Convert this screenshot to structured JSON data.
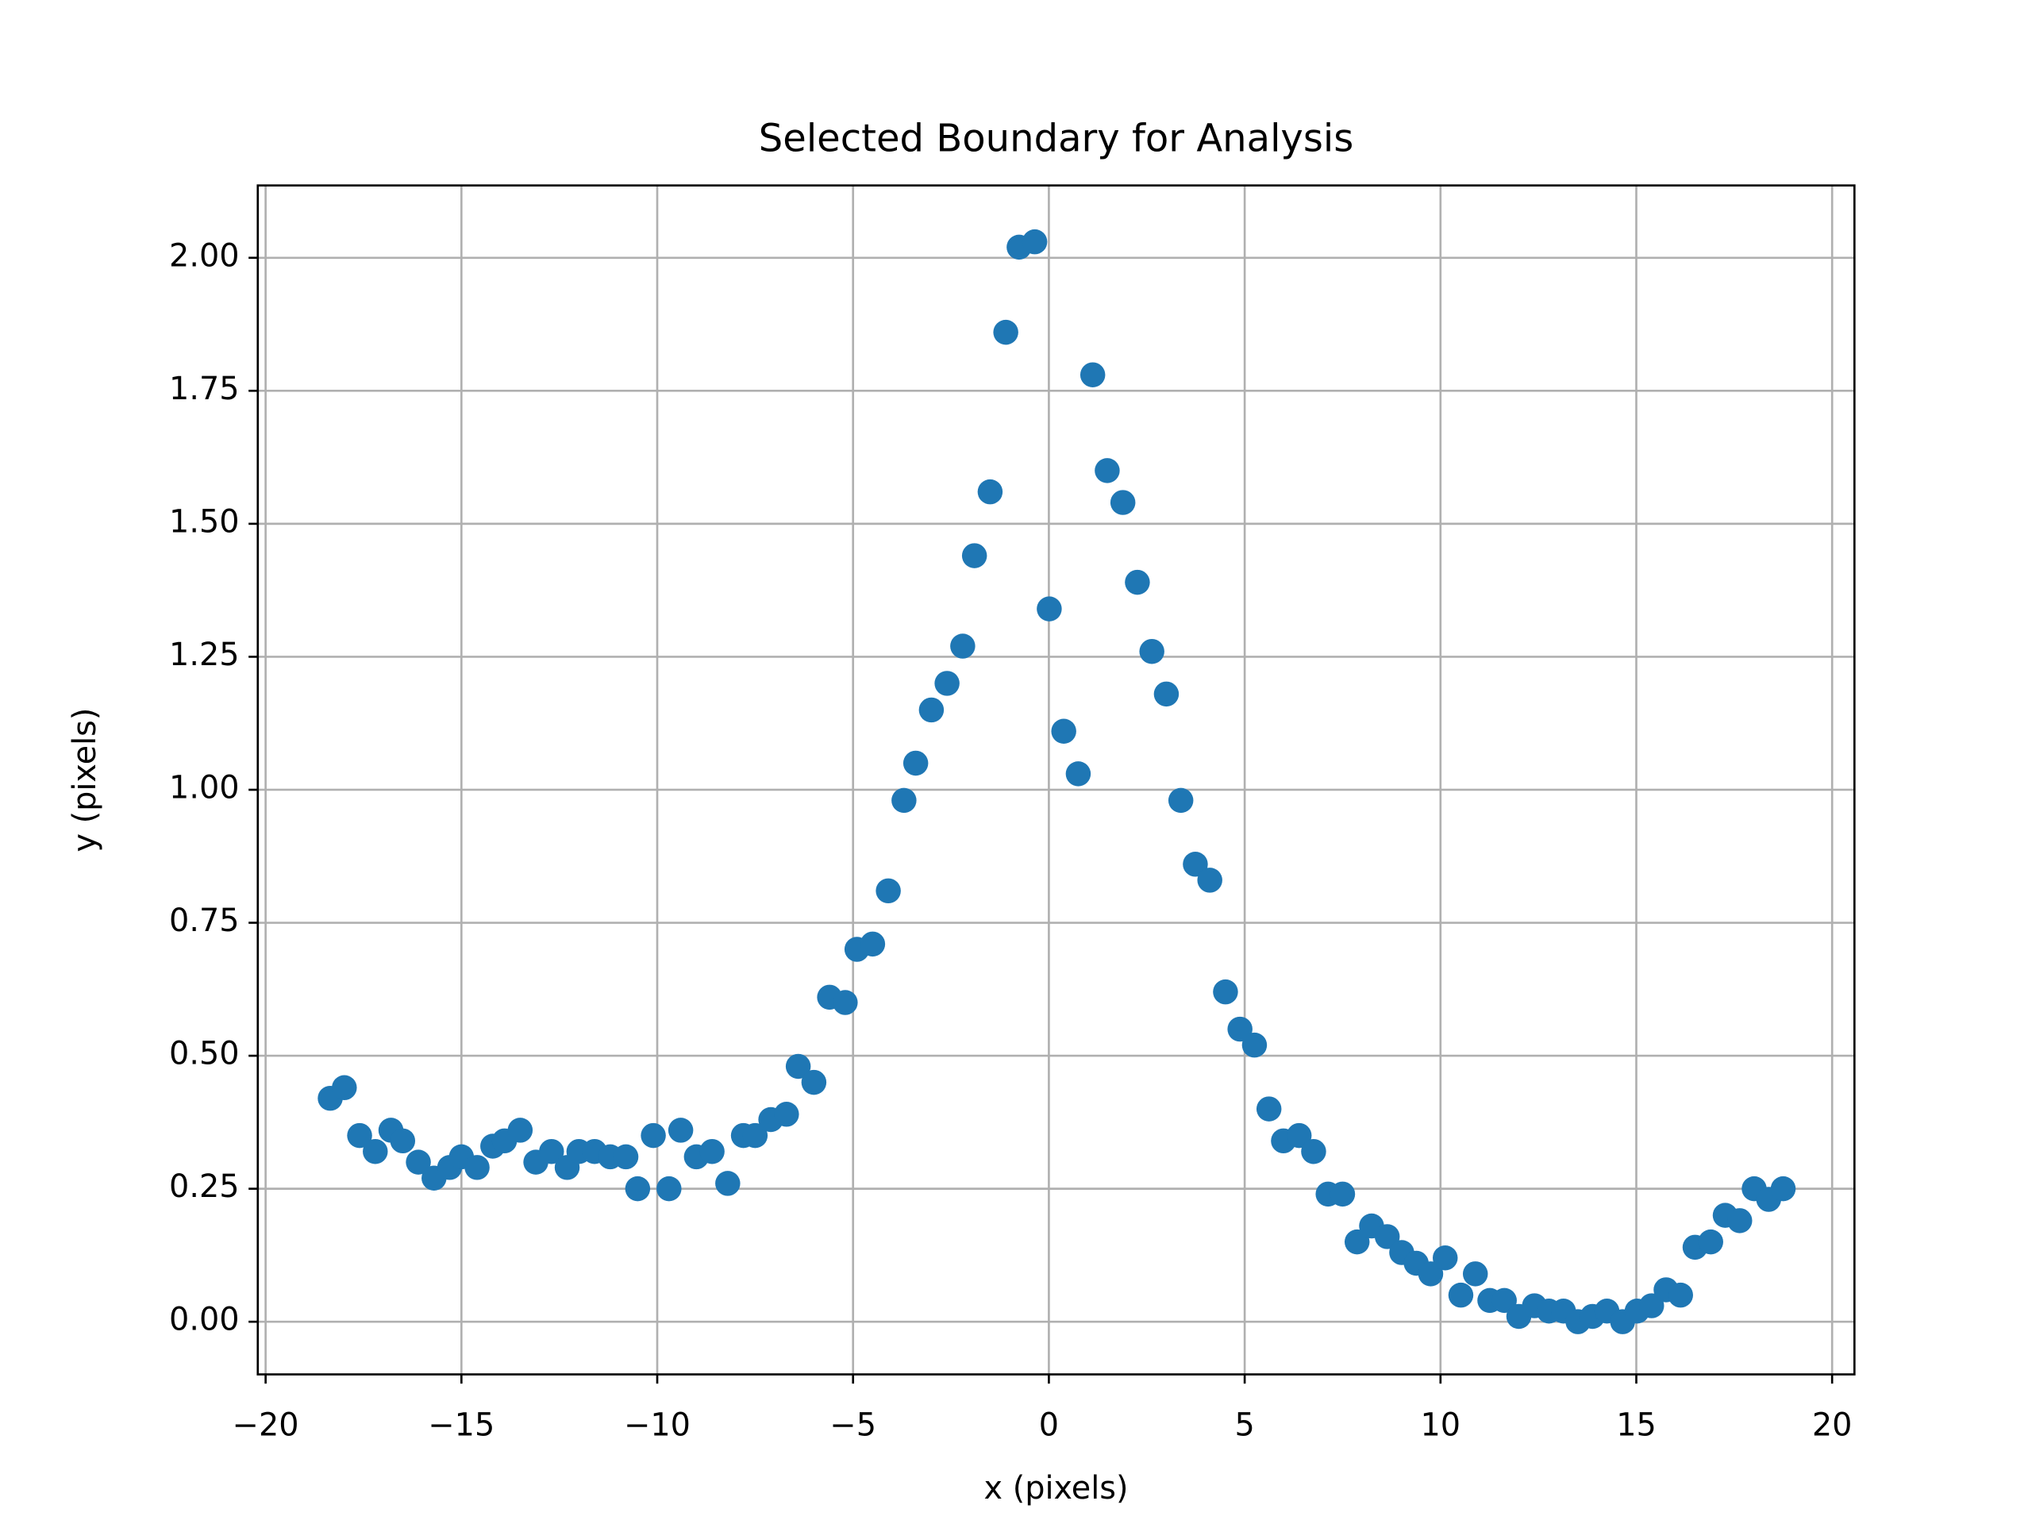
{
  "chart_data": {
    "type": "scatter",
    "title": "Selected Boundary for Analysis",
    "x_label": "x (pixels)",
    "y_label": "y (pixels)",
    "color": "#1f77b4",
    "grid": true,
    "xlim": [
      -20.2,
      20.57
    ],
    "ylim": [
      -0.099,
      2.136
    ],
    "xticks": [
      {
        "value": -20,
        "label": "−20"
      },
      {
        "value": -15,
        "label": "−15"
      },
      {
        "value": -10,
        "label": "−10"
      },
      {
        "value": -5,
        "label": "−5"
      },
      0,
      5,
      10,
      15,
      20
    ],
    "yticks": [
      {
        "value": 0,
        "label": "0.00"
      },
      {
        "value": 0.25,
        "label": "0.25"
      },
      {
        "value": 0.5,
        "label": "0.50"
      },
      {
        "value": 0.75,
        "label": "0.75"
      },
      {
        "value": 1,
        "label": "1.00"
      },
      {
        "value": 1.25,
        "label": "1.25"
      },
      {
        "value": 1.5,
        "label": "1.50"
      },
      {
        "value": 1.75,
        "label": "1.75"
      },
      {
        "value": 2,
        "label": "2.00"
      }
    ],
    "x": [
      -18.35,
      -17.99,
      -17.6,
      -17.2,
      -16.8,
      -16.5,
      -16.1,
      -15.7,
      -15.3,
      -15.0,
      -14.6,
      -14.2,
      -13.9,
      -13.5,
      -13.1,
      -12.7,
      -12.3,
      -12.0,
      -11.6,
      -11.2,
      -10.8,
      -10.5,
      -10.1,
      -9.7,
      -9.4,
      -9.0,
      -8.6,
      -8.2,
      -7.8,
      -7.5,
      -7.1,
      -6.7,
      -6.4,
      -6.0,
      -5.6,
      -5.2,
      -4.9,
      -4.5,
      -4.1,
      -3.7,
      -3.4,
      -3.0,
      -2.6,
      -2.2,
      -1.9,
      -1.5,
      -1.1,
      -0.76,
      -0.36,
      0.01,
      0.38,
      0.75,
      1.12,
      1.49,
      1.89,
      2.26,
      2.63,
      3.0,
      3.37,
      3.74,
      4.11,
      4.51,
      4.88,
      5.25,
      5.62,
      5.99,
      6.39,
      6.76,
      7.13,
      7.5,
      7.87,
      8.24,
      8.64,
      9.01,
      9.38,
      9.75,
      10.12,
      10.52,
      10.89,
      11.26,
      11.63,
      12.0,
      12.4,
      12.77,
      13.14,
      13.51,
      13.88,
      14.25,
      14.65,
      15.02,
      15.39,
      15.76,
      16.13,
      16.5,
      16.9,
      17.27,
      17.64,
      18.01,
      18.38,
      18.75
    ],
    "values": [
      0.42,
      0.44,
      0.35,
      0.32,
      0.36,
      0.34,
      0.3,
      0.27,
      0.29,
      0.31,
      0.29,
      0.33,
      0.34,
      0.36,
      0.3,
      0.32,
      0.29,
      0.32,
      0.32,
      0.31,
      0.31,
      0.25,
      0.35,
      0.25,
      0.36,
      0.31,
      0.32,
      0.26,
      0.35,
      0.35,
      0.38,
      0.39,
      0.48,
      0.45,
      0.61,
      0.6,
      0.7,
      0.71,
      0.81,
      0.98,
      1.05,
      1.15,
      1.2,
      1.27,
      1.44,
      1.56,
      1.86,
      2.02,
      2.03,
      1.34,
      1.11,
      1.03,
      1.78,
      1.6,
      1.54,
      1.39,
      1.26,
      1.18,
      0.98,
      0.86,
      0.83,
      0.62,
      0.55,
      0.52,
      0.4,
      0.34,
      0.35,
      0.32,
      0.24,
      0.24,
      0.15,
      0.18,
      0.16,
      0.13,
      0.11,
      0.09,
      0.12,
      0.05,
      0.09,
      0.04,
      0.04,
      0.01,
      0.03,
      0.02,
      0.02,
      0.0,
      0.01,
      0.02,
      0.0,
      0.02,
      0.03,
      0.06,
      0.05,
      0.14,
      0.15,
      0.2,
      0.19,
      0.25,
      0.23,
      0.25
    ]
  }
}
